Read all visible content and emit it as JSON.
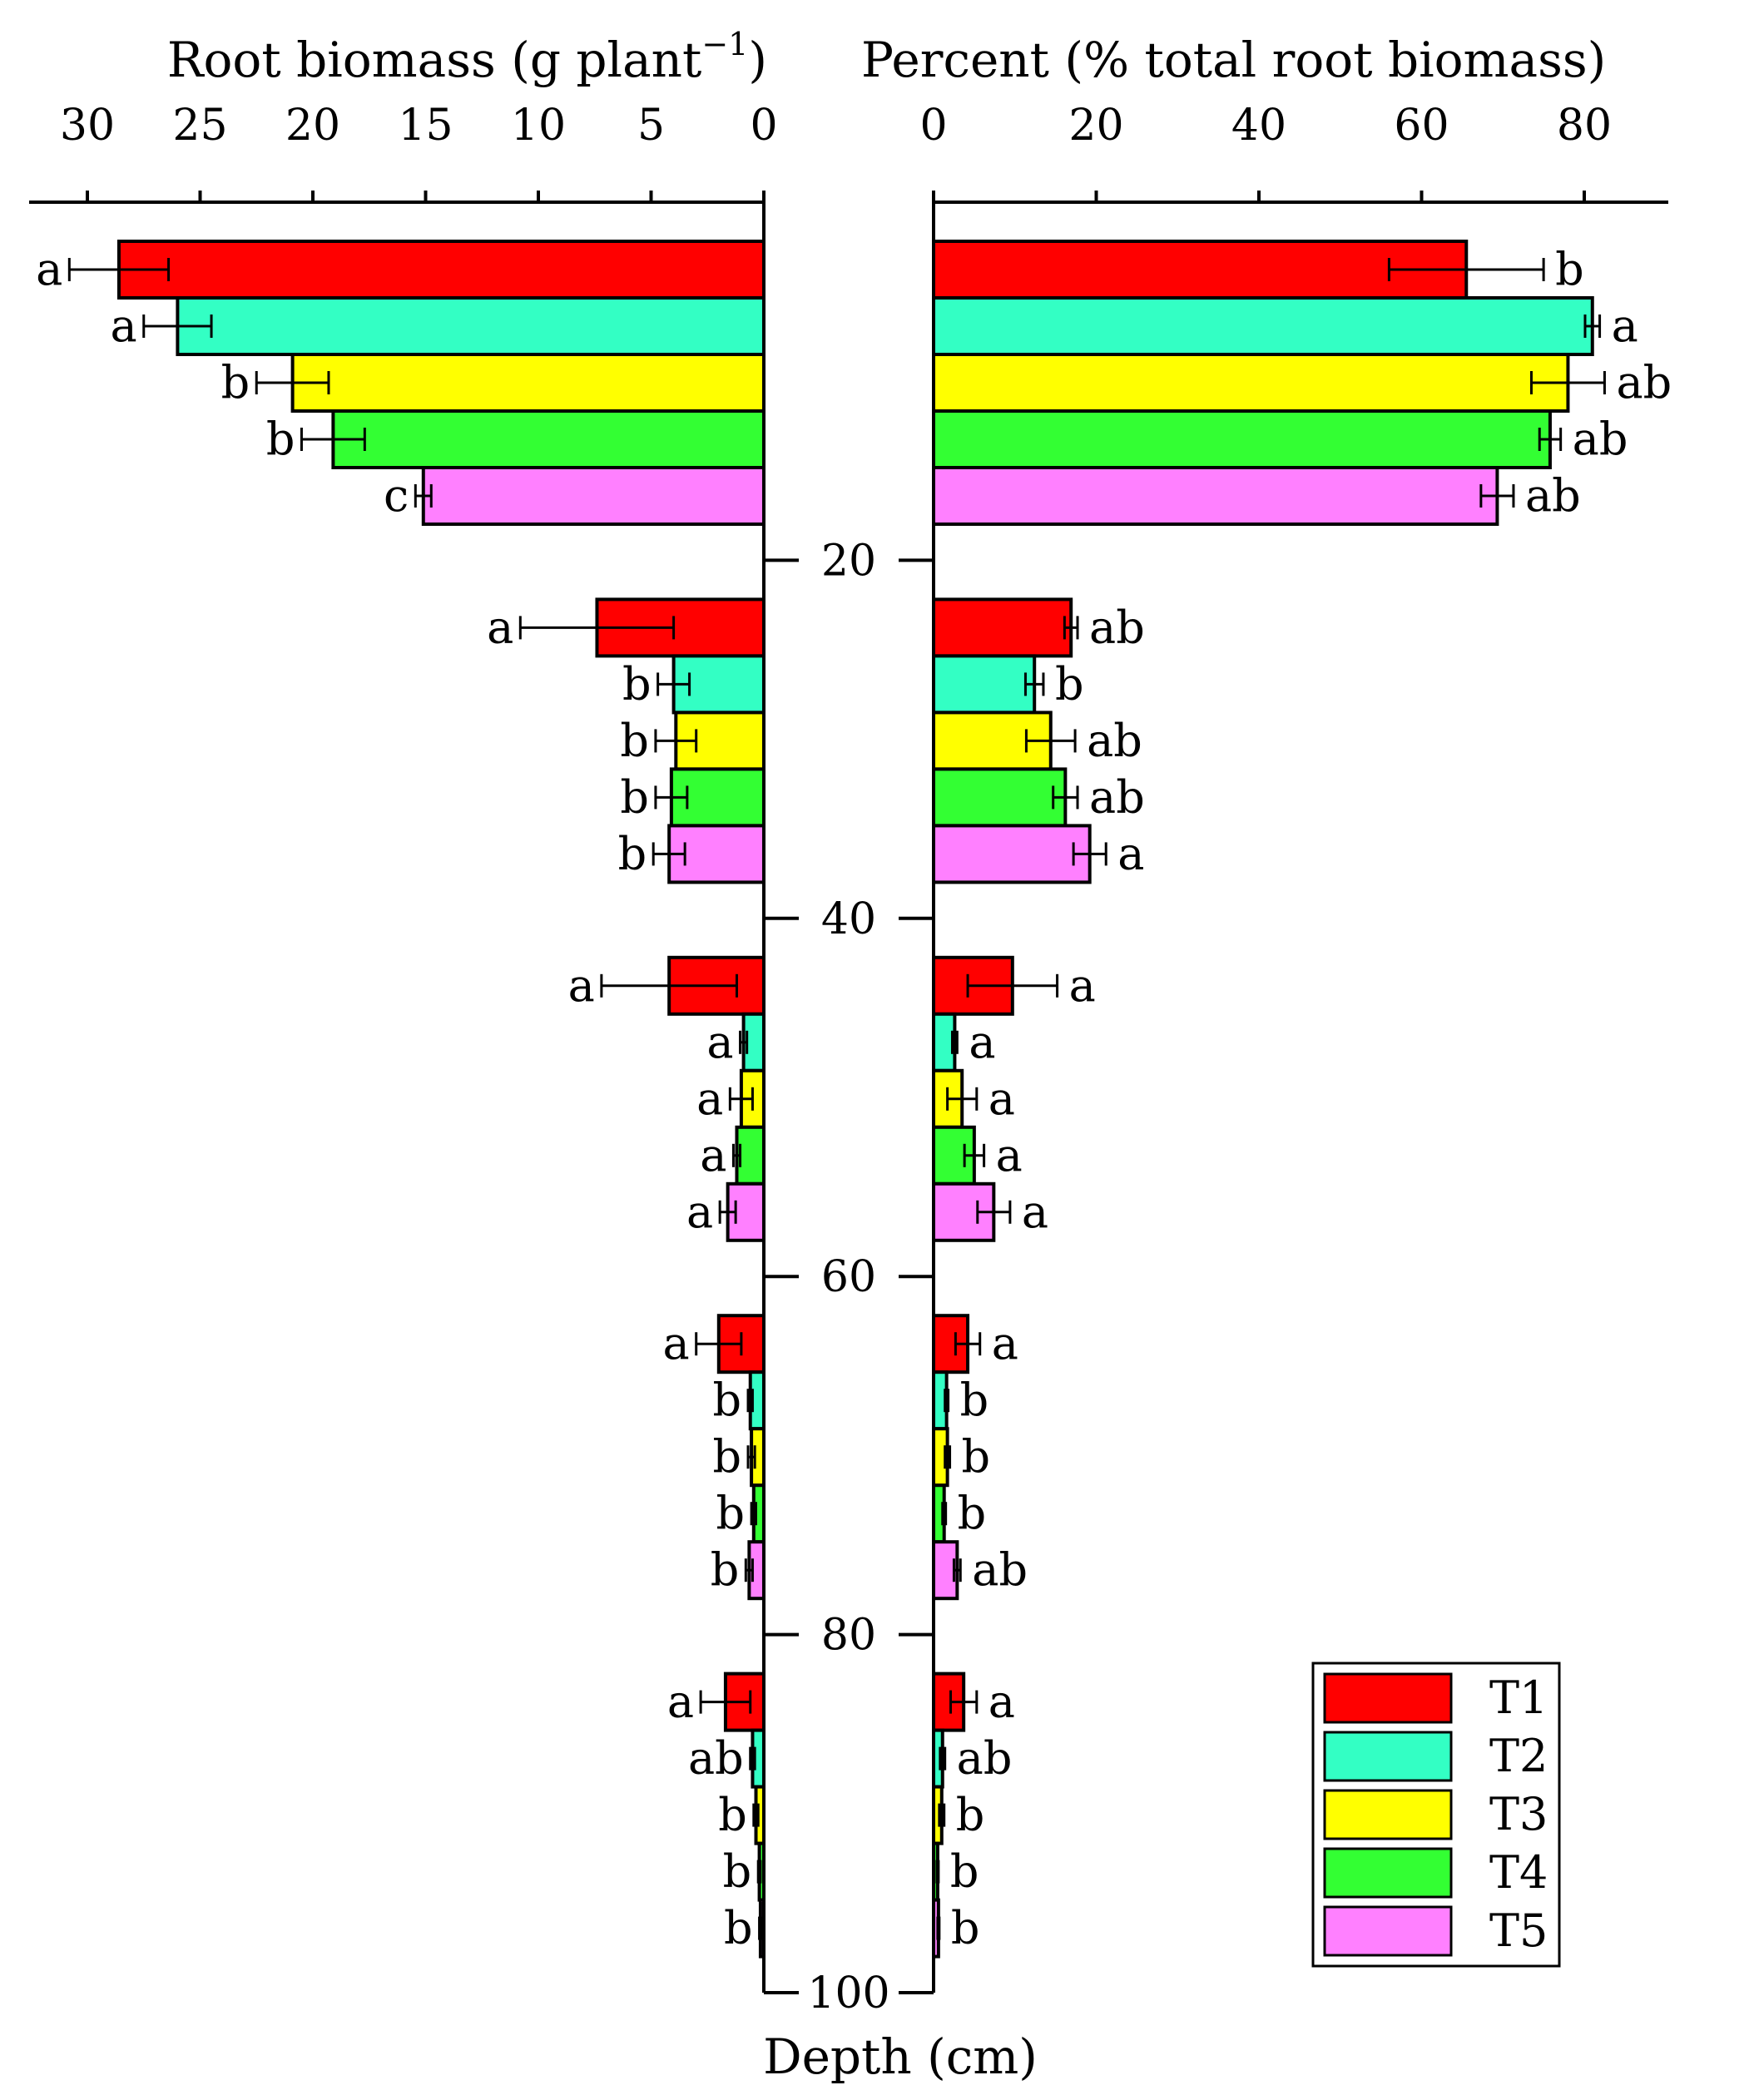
{
  "chart_data": {
    "type": "bar",
    "orientation": "horizontal",
    "depth_axis": {
      "label": "Depth (cm)",
      "ticks": [
        20,
        40,
        60,
        80,
        100
      ],
      "range": [
        0,
        100
      ]
    },
    "legend": {
      "placement": "bottom-right",
      "entries": [
        "T1",
        "T2",
        "T3",
        "T4",
        "T5"
      ]
    },
    "colors": {
      "T1": "#ff0000",
      "T2": "#33ffc4",
      "T3": "#ffff00",
      "T4": "#33ff33",
      "T5": "#ff80ff"
    },
    "layers": [
      "0-20",
      "20-40",
      "40-60",
      "60-80",
      "80-100"
    ],
    "panels": [
      {
        "id": "biomass",
        "title_main": "Root biomass (g plant",
        "title_sup": "−1",
        "title_close": ")",
        "xlim": [
          30,
          0
        ],
        "reversed": true,
        "ticks": [
          30,
          25,
          20,
          15,
          10,
          5,
          0
        ],
        "series": [
          {
            "name": "T1",
            "values": [
              28.6,
              7.4,
              4.2,
              2.0,
              1.7
            ],
            "errors": [
              2.2,
              3.4,
              3.0,
              1.0,
              1.1
            ],
            "letters": [
              "a",
              "a",
              "a",
              "a",
              "a"
            ]
          },
          {
            "name": "T2",
            "values": [
              26.0,
              4.0,
              0.9,
              0.6,
              0.5
            ],
            "errors": [
              1.5,
              0.7,
              0.15,
              0.1,
              0.1
            ],
            "letters": [
              "a",
              "b",
              "a",
              "b",
              "ab"
            ]
          },
          {
            "name": "T3",
            "values": [
              20.9,
              3.9,
              1.0,
              0.55,
              0.35
            ],
            "errors": [
              1.6,
              0.9,
              0.5,
              0.15,
              0.1
            ],
            "letters": [
              "b",
              "b",
              "a",
              "b",
              "b"
            ]
          },
          {
            "name": "T4",
            "values": [
              19.1,
              4.1,
              1.2,
              0.45,
              0.2
            ],
            "errors": [
              1.4,
              0.7,
              0.15,
              0.1,
              0.05
            ],
            "letters": [
              "b",
              "b",
              "a",
              "b",
              "b"
            ]
          },
          {
            "name": "T5",
            "values": [
              15.1,
              4.2,
              1.6,
              0.65,
              0.15
            ],
            "errors": [
              0.35,
              0.7,
              0.35,
              0.15,
              0.05
            ],
            "letters": [
              "c",
              "b",
              "a",
              "b",
              "b"
            ]
          }
        ]
      },
      {
        "id": "percent",
        "title_main": "Percent (% total root biomass)",
        "title_sup": "",
        "title_close": "",
        "xlim": [
          0,
          90
        ],
        "reversed": false,
        "ticks": [
          0,
          20,
          40,
          60,
          80
        ],
        "series": [
          {
            "name": "T1",
            "values": [
              65.5,
              16.9,
              9.7,
              4.2,
              3.7
            ],
            "errors": [
              9.5,
              0.8,
              5.5,
              1.5,
              1.6
            ],
            "letters": [
              "b",
              "ab",
              "a",
              "a",
              "a"
            ]
          },
          {
            "name": "T2",
            "values": [
              81.0,
              12.4,
              2.6,
              1.6,
              1.1
            ],
            "errors": [
              0.9,
              1.1,
              0.3,
              0.2,
              0.3
            ],
            "letters": [
              "a",
              "b",
              "a",
              "b",
              "ab"
            ]
          },
          {
            "name": "T3",
            "values": [
              78.0,
              14.4,
              3.5,
              1.7,
              1.0
            ],
            "errors": [
              4.5,
              3.0,
              1.8,
              0.3,
              0.3
            ],
            "letters": [
              "ab",
              "ab",
              "a",
              "b",
              "b"
            ]
          },
          {
            "name": "T4",
            "values": [
              75.8,
              16.2,
              5.0,
              1.3,
              0.5
            ],
            "errors": [
              1.3,
              1.5,
              1.2,
              0.2,
              0.1
            ],
            "letters": [
              "ab",
              "ab",
              "a",
              "b",
              "b"
            ]
          },
          {
            "name": "T5",
            "values": [
              69.3,
              19.2,
              7.4,
              2.9,
              0.6
            ],
            "errors": [
              2.0,
              2.0,
              2.0,
              0.4,
              0.1
            ],
            "letters": [
              "ab",
              "a",
              "a",
              "ab",
              "b"
            ]
          }
        ]
      }
    ]
  }
}
